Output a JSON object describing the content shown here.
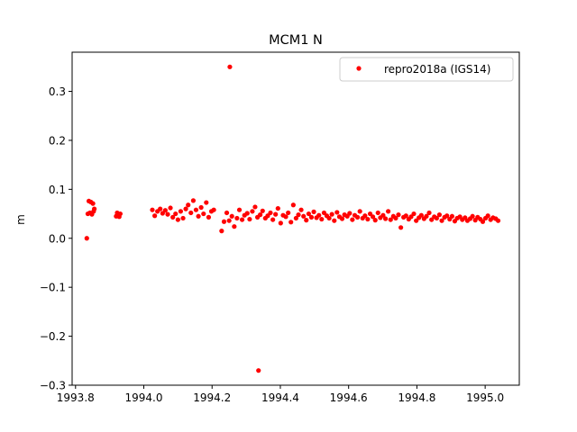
{
  "chart_data": {
    "type": "scatter",
    "title": "MCM1 N",
    "xlabel": "",
    "ylabel": "m",
    "xlim": [
      1993.79,
      1995.1
    ],
    "ylim": [
      -0.3,
      0.38
    ],
    "xticks": [
      1993.8,
      1994.0,
      1994.2,
      1994.4,
      1994.6,
      1994.8,
      1995.0
    ],
    "xtick_labels": [
      "1993.8",
      "1994.0",
      "1994.2",
      "1994.4",
      "1994.6",
      "1994.8",
      "1995.0"
    ],
    "yticks": [
      -0.3,
      -0.2,
      -0.1,
      0.0,
      0.1,
      0.2,
      0.3
    ],
    "ytick_labels": [
      "−0.3",
      "−0.2",
      "−0.1",
      "0.0",
      "0.1",
      "0.2",
      "0.3"
    ],
    "grid": false,
    "legend_position": "top-right",
    "series": [
      {
        "name": "repro2018a (IGS14)",
        "color": "#ff0000",
        "marker": "circle",
        "x": [
          1993.833,
          1993.836,
          1993.839,
          1993.842,
          1993.845,
          1993.848,
          1993.851,
          1993.853,
          1993.855,
          1993.919,
          1993.922,
          1993.925,
          1993.928,
          1993.931,
          1994.025,
          1994.032,
          1994.04,
          1994.048,
          1994.055,
          1994.063,
          1994.07,
          1994.078,
          1994.085,
          1994.093,
          1994.1,
          1994.108,
          1994.115,
          1994.123,
          1994.13,
          1994.138,
          1994.145,
          1994.153,
          1994.16,
          1994.168,
          1994.175,
          1994.183,
          1994.19,
          1994.198,
          1994.205,
          1994.228,
          1994.235,
          1994.243,
          1994.25,
          1994.258,
          1994.265,
          1994.273,
          1994.28,
          1994.288,
          1994.295,
          1994.303,
          1994.31,
          1994.318,
          1994.326,
          1994.333,
          1994.341,
          1994.348,
          1994.356,
          1994.363,
          1994.371,
          1994.378,
          1994.386,
          1994.393,
          1994.401,
          1994.408,
          1994.416,
          1994.423,
          1994.431,
          1994.438,
          1994.446,
          1994.453,
          1994.461,
          1994.468,
          1994.476,
          1994.483,
          1994.491,
          1994.498,
          1994.506,
          1994.513,
          1994.521,
          1994.528,
          1994.536,
          1994.543,
          1994.551,
          1994.558,
          1994.566,
          1994.573,
          1994.581,
          1994.588,
          1994.596,
          1994.603,
          1994.611,
          1994.618,
          1994.626,
          1994.633,
          1994.641,
          1994.648,
          1994.656,
          1994.663,
          1994.671,
          1994.678,
          1994.686,
          1994.693,
          1994.701,
          1994.708,
          1994.716,
          1994.723,
          1994.731,
          1994.738,
          1994.746,
          1994.753,
          1994.761,
          1994.768,
          1994.776,
          1994.783,
          1994.791,
          1994.798,
          1994.806,
          1994.813,
          1994.821,
          1994.828,
          1994.836,
          1994.843,
          1994.851,
          1994.858,
          1994.866,
          1994.873,
          1994.881,
          1994.888,
          1994.896,
          1994.903,
          1994.911,
          1994.918,
          1994.926,
          1994.933,
          1994.941,
          1994.948,
          1994.956,
          1994.963,
          1994.971,
          1994.978,
          1994.986,
          1994.993,
          1995.001,
          1995.008,
          1995.016,
          1995.023,
          1995.031,
          1995.038,
          1994.252,
          1994.336
        ],
        "y": [
          0.0,
          0.05,
          0.076,
          0.052,
          0.074,
          0.049,
          0.071,
          0.055,
          0.06,
          0.045,
          0.052,
          0.049,
          0.044,
          0.05,
          0.058,
          0.046,
          0.055,
          0.06,
          0.051,
          0.057,
          0.049,
          0.062,
          0.043,
          0.05,
          0.038,
          0.055,
          0.041,
          0.06,
          0.068,
          0.052,
          0.077,
          0.058,
          0.045,
          0.063,
          0.05,
          0.073,
          0.043,
          0.055,
          0.058,
          0.015,
          0.034,
          0.052,
          0.036,
          0.045,
          0.024,
          0.041,
          0.058,
          0.038,
          0.047,
          0.051,
          0.039,
          0.055,
          0.064,
          0.043,
          0.048,
          0.056,
          0.041,
          0.046,
          0.052,
          0.038,
          0.049,
          0.061,
          0.031,
          0.047,
          0.044,
          0.052,
          0.033,
          0.068,
          0.041,
          0.048,
          0.058,
          0.045,
          0.037,
          0.05,
          0.043,
          0.054,
          0.042,
          0.047,
          0.039,
          0.052,
          0.046,
          0.041,
          0.049,
          0.036,
          0.053,
          0.044,
          0.04,
          0.048,
          0.045,
          0.051,
          0.038,
          0.047,
          0.043,
          0.055,
          0.041,
          0.046,
          0.039,
          0.05,
          0.044,
          0.037,
          0.052,
          0.042,
          0.047,
          0.04,
          0.055,
          0.038,
          0.045,
          0.041,
          0.048,
          0.022,
          0.043,
          0.046,
          0.039,
          0.044,
          0.05,
          0.036,
          0.042,
          0.047,
          0.04,
          0.045,
          0.052,
          0.038,
          0.044,
          0.041,
          0.048,
          0.036,
          0.043,
          0.046,
          0.039,
          0.045,
          0.035,
          0.041,
          0.044,
          0.038,
          0.042,
          0.036,
          0.04,
          0.045,
          0.037,
          0.043,
          0.039,
          0.034,
          0.041,
          0.046,
          0.038,
          0.042,
          0.04,
          0.036,
          0.35,
          -0.27
        ]
      }
    ]
  }
}
